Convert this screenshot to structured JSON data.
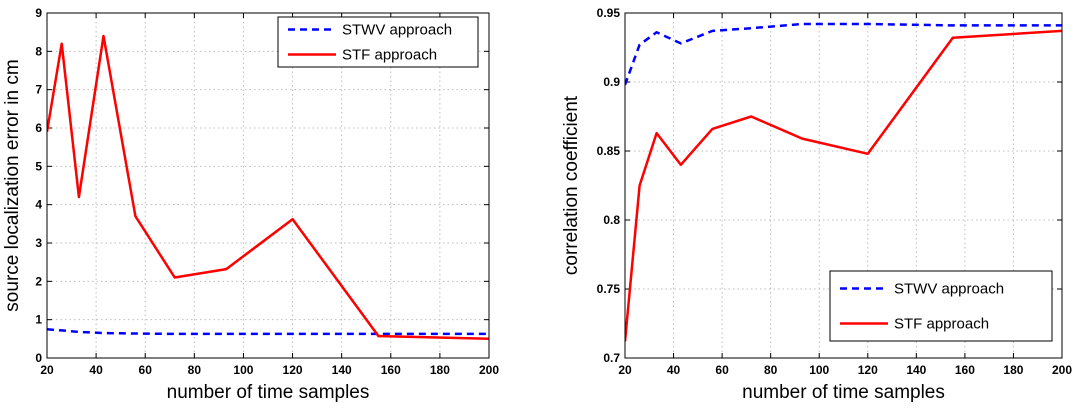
{
  "chart_data": [
    {
      "type": "line",
      "title": "",
      "xlabel": "number of time samples",
      "ylabel": "source localization error in cm",
      "xlim": [
        20,
        200
      ],
      "ylim": [
        0,
        9
      ],
      "xticks": [
        20,
        40,
        60,
        80,
        100,
        120,
        140,
        160,
        180,
        200
      ],
      "yticks": [
        0,
        1,
        2,
        3,
        4,
        5,
        6,
        7,
        8,
        9
      ],
      "grid": true,
      "legend_position": "top-right",
      "series": [
        {
          "name": "STWV approach",
          "color": "#0000ff",
          "style": "dashed",
          "x": [
            20,
            26,
            33,
            43,
            56,
            72,
            93,
            120,
            155,
            200
          ],
          "y": [
            0.75,
            0.72,
            0.68,
            0.65,
            0.64,
            0.63,
            0.63,
            0.63,
            0.63,
            0.63
          ]
        },
        {
          "name": "STF approach",
          "color": "#ff0000",
          "style": "solid",
          "x": [
            20,
            26,
            33,
            43,
            56,
            72,
            93,
            120,
            155,
            200
          ],
          "y": [
            5.9,
            8.2,
            4.2,
            8.4,
            3.7,
            2.1,
            2.32,
            3.62,
            0.57,
            0.5
          ]
        }
      ]
    },
    {
      "type": "line",
      "title": "",
      "xlabel": "number of time samples",
      "ylabel": "correlation coefficient",
      "xlim": [
        20,
        200
      ],
      "ylim": [
        0.7,
        0.95
      ],
      "xticks": [
        20,
        40,
        60,
        80,
        100,
        120,
        140,
        160,
        180,
        200
      ],
      "yticks": [
        0.7,
        0.75,
        0.8,
        0.85,
        0.9,
        0.95
      ],
      "grid": true,
      "legend_position": "bottom-right",
      "series": [
        {
          "name": "STWV approach",
          "color": "#0000ff",
          "style": "dashed",
          "x": [
            20,
            26,
            33,
            43,
            56,
            72,
            93,
            120,
            155,
            200
          ],
          "y": [
            0.898,
            0.927,
            0.936,
            0.928,
            0.937,
            0.939,
            0.942,
            0.942,
            0.941,
            0.941
          ]
        },
        {
          "name": "STF approach",
          "color": "#ff0000",
          "style": "solid",
          "x": [
            20,
            26,
            33,
            43,
            56,
            72,
            93,
            120,
            155,
            200
          ],
          "y": [
            0.712,
            0.825,
            0.863,
            0.84,
            0.866,
            0.875,
            0.859,
            0.848,
            0.932,
            0.937
          ]
        }
      ]
    }
  ]
}
